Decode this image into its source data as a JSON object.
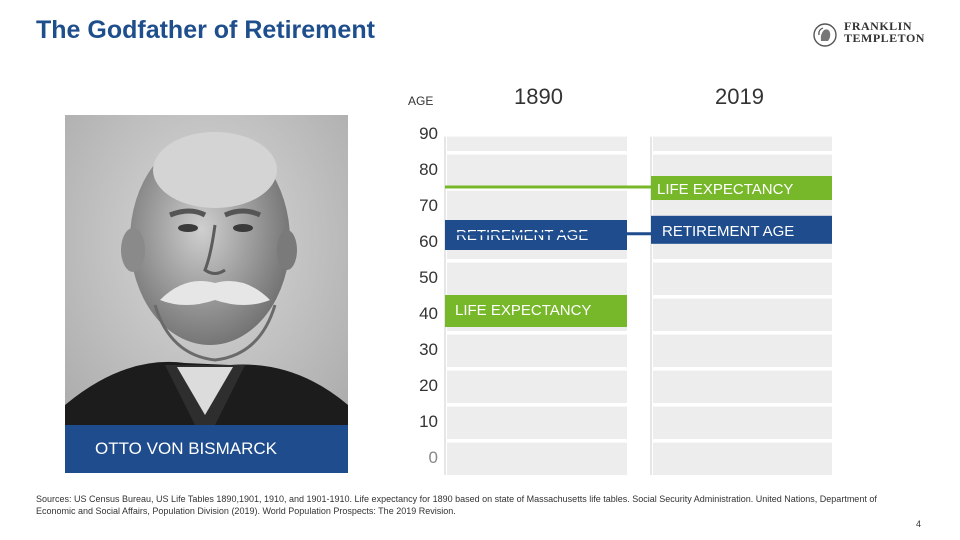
{
  "title": "The Godfather of Retirement",
  "logo": {
    "line1": "FRANKLIN",
    "line2": "TEMPLETON"
  },
  "photo": {
    "caption": "OTTO VON BISMARCK"
  },
  "chart_data": {
    "type": "bar",
    "ylabel": "AGE",
    "yticks": [
      90,
      80,
      70,
      60,
      50,
      40,
      30,
      20,
      10,
      0
    ],
    "ylim": [
      0,
      95
    ],
    "columns": [
      {
        "year": "1890",
        "retirement_age": 70,
        "life_expectancy": 45
      },
      {
        "year": "2019",
        "retirement_age": 67,
        "life_expectancy": 79
      }
    ],
    "series": [
      {
        "name": "RETIREMENT AGE",
        "color": "#1e4c8d"
      },
      {
        "name": "LIFE EXPECTANCY",
        "color": "#77b82a"
      }
    ]
  },
  "sources": "Sources: US Census Bureau, US Life Tables 1890,1901, 1910, and 1901-1910. Life expectancy for 1890 based on state of Massachusetts life tables. Social Security Administration. United Nations, Department of Economic and Social Affairs, Population Division (2019). World Population Prospects: The 2019 Revision.",
  "page_number": "4",
  "colors": {
    "title": "#1f4e8c",
    "retirement": "#1e4c8d",
    "life": "#77b82a",
    "band": "#ededed"
  }
}
